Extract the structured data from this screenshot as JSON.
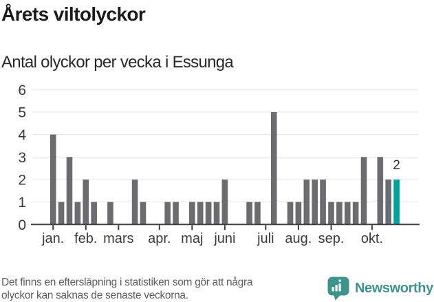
{
  "header": {
    "title": "Årets viltolyckor",
    "subtitle": "Antal olyckor per vecka i Essunga"
  },
  "chart_data": {
    "type": "bar",
    "x_unit": "week_of_year",
    "num_weeks": 43,
    "values": [
      4,
      1,
      3,
      1,
      2,
      1,
      0,
      1,
      0,
      0,
      2,
      1,
      0,
      0,
      1,
      1,
      0,
      1,
      1,
      1,
      1,
      2,
      0,
      0,
      1,
      1,
      0,
      5,
      0,
      1,
      1,
      2,
      2,
      2,
      1,
      1,
      1,
      1,
      3,
      0,
      3,
      2,
      2
    ],
    "month_ticks": [
      {
        "label": "jan.",
        "week": 1
      },
      {
        "label": "feb.",
        "week": 5
      },
      {
        "label": "mars",
        "week": 9
      },
      {
        "label": "apr.",
        "week": 14
      },
      {
        "label": "maj",
        "week": 18
      },
      {
        "label": "juni",
        "week": 22
      },
      {
        "label": "juli",
        "week": 27
      },
      {
        "label": "aug.",
        "week": 31
      },
      {
        "label": "sep.",
        "week": 35
      },
      {
        "label": "okt.",
        "week": 40
      }
    ],
    "yticks": [
      0,
      1,
      2,
      3,
      4,
      5,
      6
    ],
    "ylim": [
      0,
      6
    ],
    "grid": true,
    "legend": false,
    "bar_color": "#6b6b70",
    "highlight_color": "#00a29b",
    "highlight_last_bar": true,
    "highlight_value_label": "2"
  },
  "footer": {
    "note_line1": "Det finns en eftersläpning i statistiken som gör att några",
    "note_line2": "olyckor kan saknas de senaste veckorna.",
    "brand": "Newsworthy"
  },
  "colors": {
    "accent_teal": "#00a29b",
    "brand_teal": "#3e948c",
    "bar_gray": "#6b6b70",
    "gridline": "#e6e6e8",
    "axis": "#3f3f44"
  }
}
